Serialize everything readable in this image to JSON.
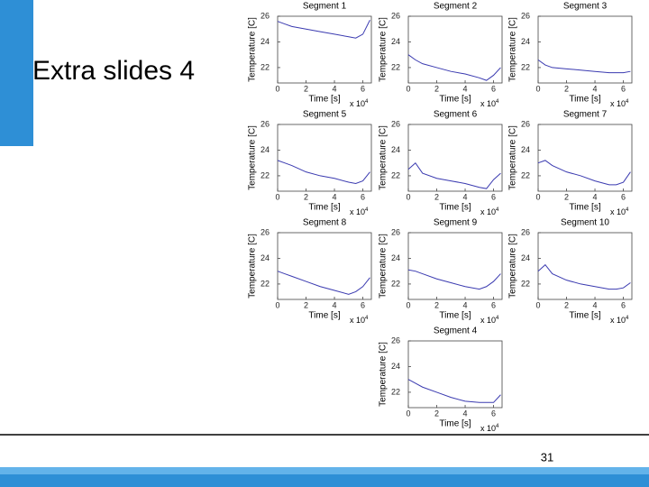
{
  "slide": {
    "title": "Extra slides 4",
    "page_number": "31"
  },
  "chart_data": [
    {
      "type": "line",
      "title": "Segment 1",
      "xlabel": "Time [s]",
      "ylabel": "Temperature [C]",
      "x_scale": "x 10",
      "x_scale_exp": "4",
      "x": [
        0,
        0.5,
        1,
        2,
        3,
        4,
        5,
        5.5,
        6,
        6.5
      ],
      "xlim": [
        0,
        6.6
      ],
      "xticks": [
        0,
        2,
        4,
        6
      ],
      "ylim": [
        20.8,
        26
      ],
      "yticks": [
        22,
        24,
        26
      ],
      "series": [
        {
          "name": "Segment 1",
          "color": "#3a3ab0",
          "values": [
            25.6,
            25.4,
            25.2,
            25.0,
            24.8,
            24.6,
            24.4,
            24.3,
            24.6,
            25.7
          ]
        }
      ]
    },
    {
      "type": "line",
      "title": "Segment 2",
      "xlabel": "Time [s]",
      "ylabel": "Temperature [C]",
      "x_scale": "x 10",
      "x_scale_exp": "4",
      "x": [
        0,
        0.5,
        1,
        2,
        3,
        4,
        5,
        5.5,
        6,
        6.5
      ],
      "xlim": [
        0,
        6.6
      ],
      "xticks": [
        0,
        2,
        4,
        6
      ],
      "ylim": [
        20.8,
        26
      ],
      "yticks": [
        22,
        24,
        26
      ],
      "series": [
        {
          "name": "Segment 2",
          "color": "#3a3ab0",
          "values": [
            23.0,
            22.6,
            22.3,
            22.0,
            21.7,
            21.5,
            21.2,
            21.0,
            21.4,
            22.0
          ]
        }
      ]
    },
    {
      "type": "line",
      "title": "Segment 3",
      "xlabel": "Time [s]",
      "ylabel": "Temperature [C]",
      "x_scale": "x 10",
      "x_scale_exp": "4",
      "x": [
        0,
        0.5,
        1,
        2,
        3,
        4,
        5,
        5.5,
        6,
        6.5
      ],
      "xlim": [
        0,
        6.6
      ],
      "xticks": [
        0,
        2,
        4,
        6
      ],
      "ylim": [
        20.8,
        26
      ],
      "yticks": [
        22,
        24,
        26
      ],
      "series": [
        {
          "name": "Segment 3",
          "color": "#3a3ab0",
          "values": [
            22.6,
            22.2,
            22.0,
            21.9,
            21.8,
            21.7,
            21.6,
            21.6,
            21.6,
            21.7
          ]
        }
      ]
    },
    {
      "type": "line",
      "title": "Segment 5",
      "xlabel": "Time [s]",
      "ylabel": "Temperature [C]",
      "x_scale": "x 10",
      "x_scale_exp": "4",
      "x": [
        0,
        0.5,
        1,
        2,
        3,
        4,
        5,
        5.5,
        6,
        6.5
      ],
      "xlim": [
        0,
        6.6
      ],
      "xticks": [
        0,
        2,
        4,
        6
      ],
      "ylim": [
        20.8,
        26
      ],
      "yticks": [
        22,
        24,
        26
      ],
      "series": [
        {
          "name": "Segment 5",
          "color": "#3a3ab0",
          "values": [
            23.2,
            23.0,
            22.8,
            22.3,
            22.0,
            21.8,
            21.5,
            21.4,
            21.6,
            22.3
          ]
        }
      ]
    },
    {
      "type": "line",
      "title": "Segment 6",
      "xlabel": "Time [s]",
      "ylabel": "Temperature [C]",
      "x_scale": "x 10",
      "x_scale_exp": "4",
      "x": [
        0,
        0.5,
        1,
        2,
        3,
        4,
        5,
        5.5,
        6,
        6.5
      ],
      "xlim": [
        0,
        6.6
      ],
      "xticks": [
        0,
        2,
        4,
        6
      ],
      "ylim": [
        20.8,
        26
      ],
      "yticks": [
        22,
        24,
        26
      ],
      "series": [
        {
          "name": "Segment 6",
          "color": "#3a3ab0",
          "values": [
            22.5,
            23.0,
            22.2,
            21.8,
            21.6,
            21.4,
            21.1,
            21.0,
            21.7,
            22.2
          ]
        }
      ]
    },
    {
      "type": "line",
      "title": "Segment 7",
      "xlabel": "Time [s]",
      "ylabel": "Temperature [C]",
      "x_scale": "x 10",
      "x_scale_exp": "4",
      "x": [
        0,
        0.5,
        1,
        2,
        3,
        4,
        5,
        5.5,
        6,
        6.5
      ],
      "xlim": [
        0,
        6.6
      ],
      "xticks": [
        0,
        2,
        4,
        6
      ],
      "ylim": [
        20.8,
        26
      ],
      "yticks": [
        22,
        24,
        26
      ],
      "series": [
        {
          "name": "Segment 7",
          "color": "#3a3ab0",
          "values": [
            23.0,
            23.2,
            22.8,
            22.3,
            22.0,
            21.6,
            21.3,
            21.3,
            21.5,
            22.3
          ]
        }
      ]
    },
    {
      "type": "line",
      "title": "Segment 8",
      "xlabel": "Time [s]",
      "ylabel": "Temperature [C]",
      "x_scale": "x 10",
      "x_scale_exp": "4",
      "x": [
        0,
        0.5,
        1,
        2,
        3,
        4,
        5,
        5.5,
        6,
        6.5
      ],
      "xlim": [
        0,
        6.6
      ],
      "xticks": [
        0,
        2,
        4,
        6
      ],
      "ylim": [
        20.8,
        26
      ],
      "yticks": [
        22,
        24,
        26
      ],
      "series": [
        {
          "name": "Segment 8",
          "color": "#3a3ab0",
          "values": [
            23.0,
            22.8,
            22.6,
            22.2,
            21.8,
            21.5,
            21.2,
            21.4,
            21.8,
            22.5
          ]
        }
      ]
    },
    {
      "type": "line",
      "title": "Segment 9",
      "xlabel": "Time [s]",
      "ylabel": "Temperature [C]",
      "x_scale": "x 10",
      "x_scale_exp": "4",
      "x": [
        0,
        0.5,
        1,
        2,
        3,
        4,
        5,
        5.5,
        6,
        6.5
      ],
      "xlim": [
        0,
        6.6
      ],
      "xticks": [
        0,
        2,
        4,
        6
      ],
      "ylim": [
        20.8,
        26
      ],
      "yticks": [
        22,
        24,
        26
      ],
      "series": [
        {
          "name": "Segment 9",
          "color": "#3a3ab0",
          "values": [
            23.1,
            23.0,
            22.8,
            22.4,
            22.1,
            21.8,
            21.6,
            21.8,
            22.2,
            22.8
          ]
        }
      ]
    },
    {
      "type": "line",
      "title": "Segment 10",
      "xlabel": "Time [s]",
      "ylabel": "Temperature [C]",
      "x_scale": "x 10",
      "x_scale_exp": "4",
      "x": [
        0,
        0.5,
        1,
        2,
        3,
        4,
        5,
        5.5,
        6,
        6.5
      ],
      "xlim": [
        0,
        6.6
      ],
      "xticks": [
        0,
        2,
        4,
        6
      ],
      "ylim": [
        20.8,
        26
      ],
      "yticks": [
        22,
        24,
        26
      ],
      "series": [
        {
          "name": "Segment 10",
          "color": "#3a3ab0",
          "values": [
            23.0,
            23.5,
            22.8,
            22.3,
            22.0,
            21.8,
            21.6,
            21.6,
            21.7,
            22.1
          ]
        }
      ]
    },
    {
      "type": "line",
      "title": "Segment 4",
      "xlabel": "Time [s]",
      "ylabel": "Temperature [C]",
      "x_scale": "x 10",
      "x_scale_exp": "4",
      "x": [
        0,
        0.5,
        1,
        2,
        3,
        4,
        5,
        5.5,
        6,
        6.5
      ],
      "xlim": [
        0,
        6.6
      ],
      "xticks": [
        0,
        2,
        4,
        6
      ],
      "ylim": [
        20.8,
        26
      ],
      "yticks": [
        22,
        24,
        26
      ],
      "series": [
        {
          "name": "Segment 4",
          "color": "#3a3ab0",
          "values": [
            23.0,
            22.7,
            22.4,
            22.0,
            21.6,
            21.3,
            21.2,
            21.2,
            21.2,
            21.8
          ]
        }
      ]
    }
  ]
}
